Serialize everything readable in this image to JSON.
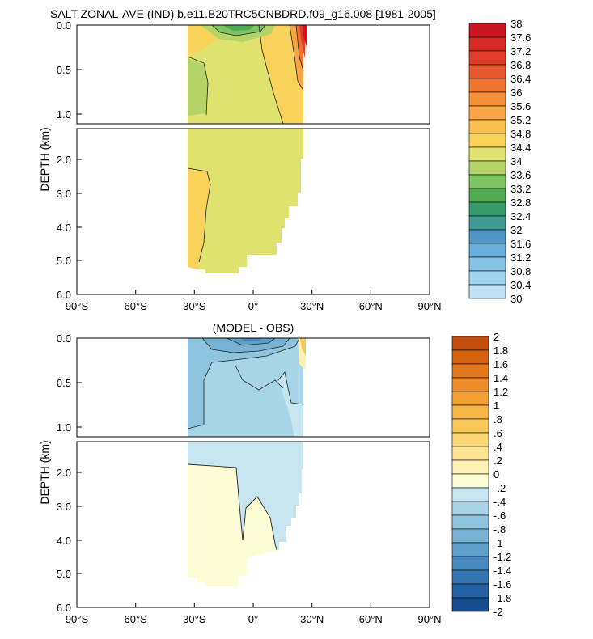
{
  "chart_data": [
    {
      "type": "heatmap",
      "title": "SALT ZONAL-AVE (IND) b.e11.B20TRC5CNBDRD.f09_g16.008 [1981-2005]",
      "ylabel": "DEPTH (km)",
      "xlabel": "",
      "x_range": [
        -90,
        90
      ],
      "x_ticks": [
        "90°S",
        "60°S",
        "30°S",
        "0°",
        "30°N",
        "60°N",
        "90°N"
      ],
      "y_ticks_upper": [
        "0.0",
        "0.5",
        "1.0"
      ],
      "y_ticks_lower": [
        "2.0",
        "3.0",
        "4.0",
        "5.0",
        "6.0"
      ],
      "upper_depth_range": [
        0,
        1.1
      ],
      "lower_depth_range": [
        1.1,
        6.0
      ],
      "colorbar_labels": [
        "38",
        "37.6",
        "37.2",
        "36.8",
        "36.4",
        "36",
        "35.6",
        "35.2",
        "34.8",
        "34.4",
        "34",
        "33.6",
        "33.2",
        "32.8",
        "32.4",
        "32",
        "31.6",
        "31.2",
        "30.8",
        "30.4",
        "30"
      ],
      "colorbar_colors": [
        "#c8151f",
        "#d52a26",
        "#e03d2a",
        "#e85a2d",
        "#ef7430",
        "#f58f38",
        "#f8a545",
        "#fbbf4e",
        "#f8d25a",
        "#dfe26e",
        "#b4d46a",
        "#7dc462",
        "#4faa51",
        "#389a6b",
        "#409b94",
        "#4e95c8",
        "#6aaedb",
        "#86c1e6",
        "#a2d3ef",
        "#c1e1f4",
        "#ddedf8"
      ]
    },
    {
      "type": "heatmap",
      "title": "(MODEL - OBS)",
      "ylabel": "DEPTH (km)",
      "xlabel": "",
      "x_range": [
        -90,
        90
      ],
      "x_ticks": [
        "90°S",
        "60°S",
        "30°S",
        "0°",
        "30°N",
        "60°N",
        "90°N"
      ],
      "y_ticks_upper": [
        "0.0",
        "0.5",
        "1.0"
      ],
      "y_ticks_lower": [
        "2.0",
        "3.0",
        "4.0",
        "5.0",
        "6.0"
      ],
      "upper_depth_range": [
        0,
        1.1
      ],
      "lower_depth_range": [
        1.1,
        6.0
      ],
      "colorbar_labels": [
        "2",
        "1.8",
        "1.6",
        "1.4",
        "1.2",
        "1",
        ".8",
        ".6",
        ".4",
        ".2",
        "0",
        "-.2",
        "-.4",
        "-.6",
        "-.8",
        "-1",
        "-1.2",
        "-1.4",
        "-1.6",
        "-1.8",
        "-2"
      ],
      "colorbar_colors": [
        "#c24d0d",
        "#d6610f",
        "#e5771c",
        "#ee8c2a",
        "#f4a039",
        "#f8b54a",
        "#f9c95c",
        "#fad774",
        "#fce491",
        "#fdf1b4",
        "#fefcd4",
        "#c7e6f0",
        "#a9d5e8",
        "#8fc4de",
        "#76b3d5",
        "#5e9fcb",
        "#4789bf",
        "#3574b2",
        "#2460a3",
        "#174d90",
        "#0b3a78"
      ]
    }
  ]
}
